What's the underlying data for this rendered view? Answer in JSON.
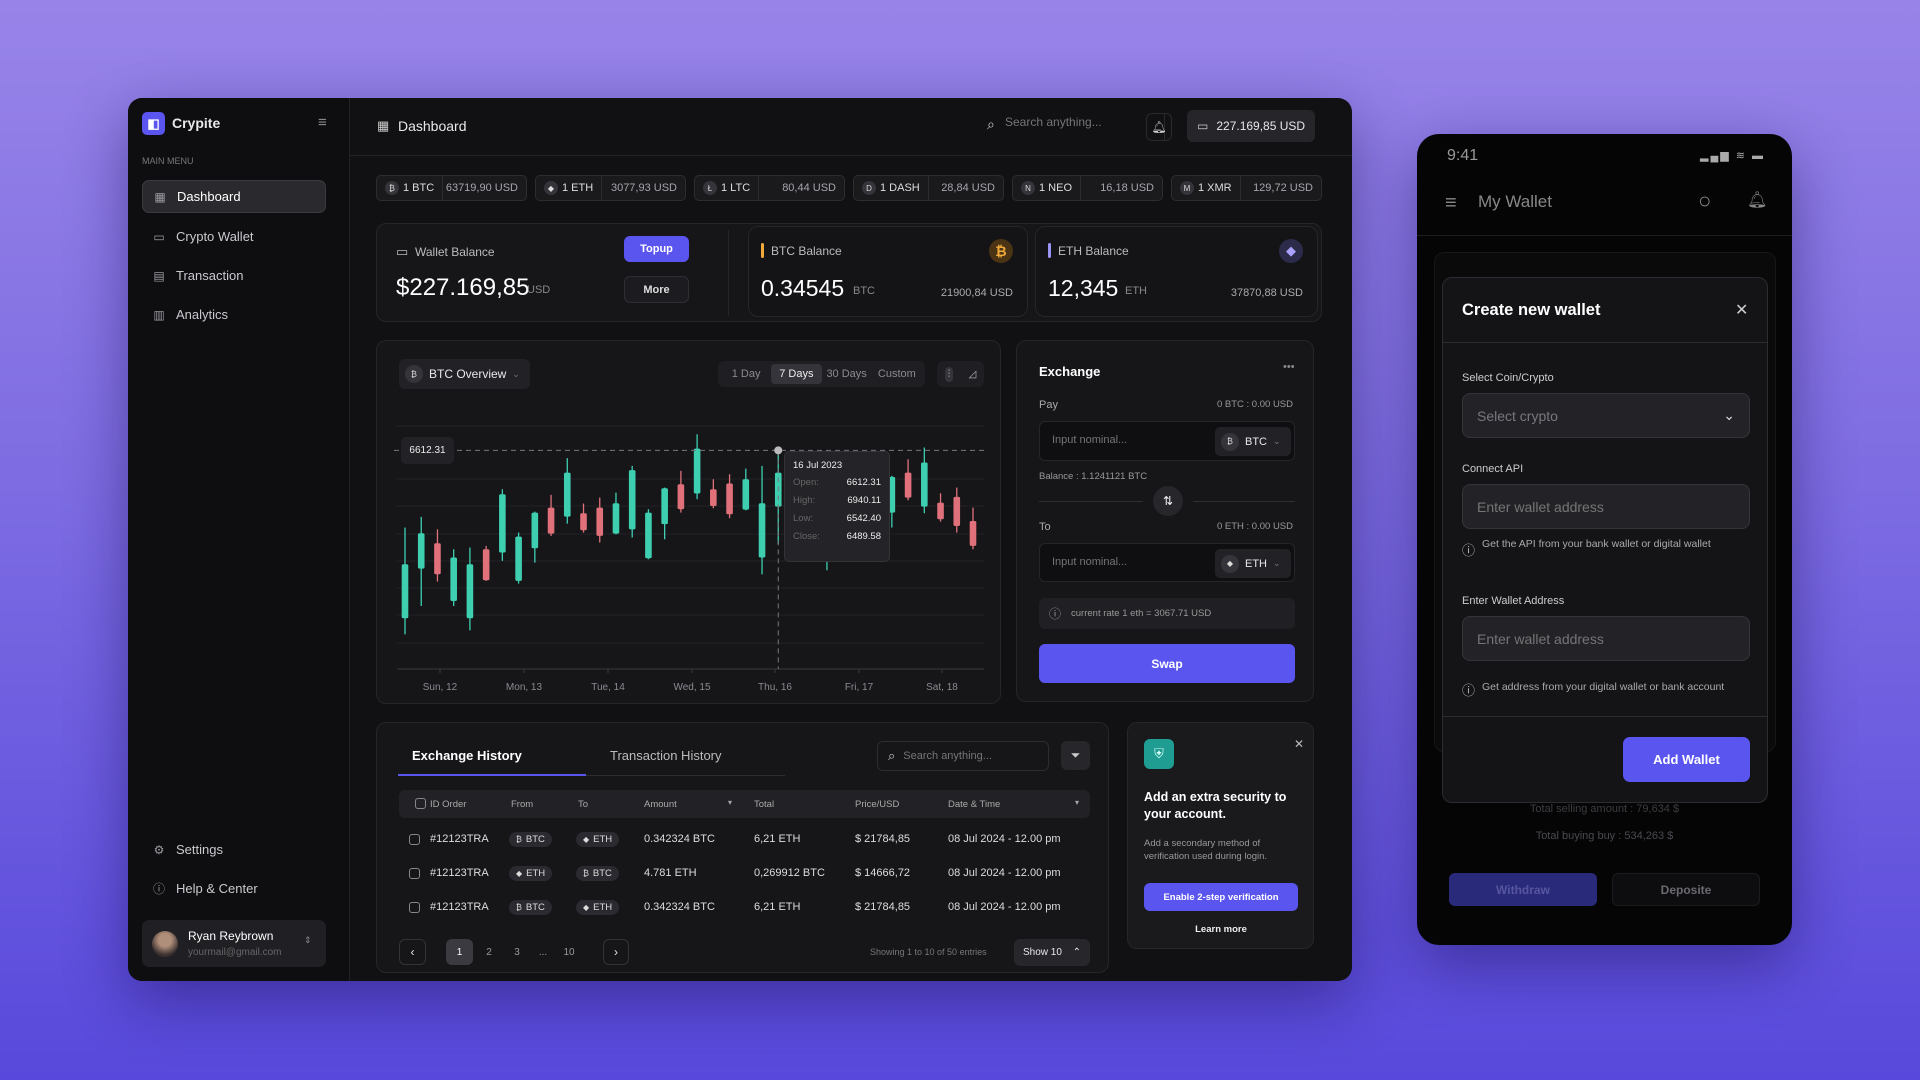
{
  "app": {
    "name": "Crypite",
    "main_menu_label": "MAIN MENU"
  },
  "sidebar": {
    "items": [
      {
        "label": "Dashboard",
        "icon": "grid-icon",
        "active": true
      },
      {
        "label": "Crypto Wallet",
        "icon": "wallet-icon"
      },
      {
        "label": "Transaction",
        "icon": "receipt-icon"
      },
      {
        "label": "Analytics",
        "icon": "chart-icon"
      }
    ],
    "bottom": [
      {
        "label": "Settings",
        "icon": "gear-icon"
      },
      {
        "label": "Help & Center",
        "icon": "help-icon"
      }
    ],
    "user": {
      "name": "Ryan Reybrown",
      "email": "yourmail@gmail.com"
    }
  },
  "header": {
    "title": "Dashboard",
    "search_placeholder": "Search anything...",
    "balance": "227.169,85 USD"
  },
  "tickers": [
    {
      "symbol": "1 BTC",
      "glyph": "₿",
      "price": "63719,90 USD"
    },
    {
      "symbol": "1 ETH",
      "glyph": "◆",
      "price": "3077,93 USD"
    },
    {
      "symbol": "1 LTC",
      "glyph": "Ł",
      "price": "80,44 USD"
    },
    {
      "symbol": "1 DASH",
      "glyph": "D",
      "price": "28,84 USD"
    },
    {
      "symbol": "1 NEO",
      "glyph": "N",
      "price": "16,18 USD"
    },
    {
      "symbol": "1 XMR",
      "glyph": "M",
      "price": "129,72 USD"
    }
  ],
  "wallet": {
    "label": "Wallet Balance",
    "amount": "$227.169,85",
    "unit": "USD",
    "topup": "Topup",
    "more": "More"
  },
  "btc_balance": {
    "label": "BTC Balance",
    "amount": "0.34545",
    "unit": "BTC",
    "usd": "21900,84 USD",
    "accent": "#f2a93b"
  },
  "eth_balance": {
    "label": "ETH Balance",
    "amount": "12,345",
    "unit": "ETH",
    "usd": "37870,88 USD",
    "accent": "#9b94f5"
  },
  "chart_panel": {
    "selector": "BTC Overview",
    "ranges": [
      "1 Day",
      "7 Days",
      "30 Days",
      "Custom"
    ],
    "active_range": "7 Days",
    "crosshair_label": "6612.31",
    "tooltip": {
      "date": "16 Jul 2023",
      "rows": [
        {
          "k": "Open:",
          "v": "6612.31"
        },
        {
          "k": "High:",
          "v": "6940.11"
        },
        {
          "k": "Low:",
          "v": "6542.40"
        },
        {
          "k": "Close:",
          "v": "6489.58"
        }
      ]
    }
  },
  "chart_data": {
    "type": "candlestick",
    "x_tick_labels": [
      "Sun, 12",
      "Mon, 13",
      "Tue, 14",
      "Wed, 15",
      "Thu, 16",
      "Fri, 17",
      "Sat, 18"
    ],
    "ylim": [
      5100,
      6900
    ],
    "grid": true,
    "colors": {
      "up": "#3ecfb1",
      "down": "#e0717b"
    },
    "ohlc": [
      [
        5372,
        6044,
        5253,
        5772
      ],
      [
        5740,
        6123,
        5463,
        6002
      ],
      [
        5928,
        6031,
        5644,
        5698
      ],
      [
        5500,
        5883,
        5463,
        5822
      ],
      [
        5372,
        5896,
        5283,
        5772
      ],
      [
        5883,
        5908,
        5649,
        5654
      ],
      [
        5859,
        6328,
        5797,
        6291
      ],
      [
        5649,
        6007,
        5629,
        5977
      ],
      [
        5891,
        6162,
        5784,
        6155
      ],
      [
        6192,
        6286,
        5982,
        5999
      ],
      [
        6125,
        6558,
        6073,
        6451
      ],
      [
        6150,
        6222,
        6007,
        6024
      ],
      [
        6192,
        6266,
        5933,
        5982
      ],
      [
        5999,
        6303,
        5994,
        6224
      ],
      [
        6031,
        6501,
        5970,
        6469
      ],
      [
        5817,
        6180,
        5809,
        6155
      ],
      [
        6069,
        6340,
        5957,
        6335
      ],
      [
        6365,
        6464,
        6155,
        6180
      ],
      [
        6296,
        6735,
        6254,
        6629
      ],
      [
        6328,
        6402,
        6187,
        6204
      ],
      [
        6370,
        6439,
        6113,
        6143
      ],
      [
        6177,
        6481,
        6172,
        6402
      ],
      [
        5822,
        6501,
        5698,
        6224
      ],
      [
        6199,
        6587,
        5920,
        6451
      ],
      [
        6420,
        6480,
        6250,
        6300
      ],
      [
        6150,
        6420,
        6100,
        6380
      ],
      [
        5846,
        6390,
        5728,
        6240
      ],
      [
        6200,
        6350,
        6150,
        6300
      ],
      [
        6350,
        6400,
        6200,
        6250
      ],
      [
        6380,
        6420,
        6230,
        6280
      ],
      [
        6155,
        6427,
        6044,
        6419
      ],
      [
        6451,
        6550,
        6246,
        6266
      ],
      [
        6199,
        6637,
        6150,
        6526
      ],
      [
        6229,
        6298,
        6088,
        6106
      ],
      [
        6271,
        6340,
        6007,
        6056
      ],
      [
        6093,
        6192,
        5883,
        5908
      ]
    ],
    "crosshair_value": 6612.31
  },
  "exchange": {
    "title": "Exchange",
    "pay_label": "Pay",
    "pay_value": "0 BTC : 0.00 USD",
    "placeholder": "Input nominal...",
    "pay_coin": "BTC",
    "balance": "Balance : 1.1241121 BTC",
    "to_label": "To",
    "to_value": "0 ETH : 0.00 USD",
    "to_coin": "ETH",
    "rate": "current rate 1 eth = 3067.71 USD",
    "swap": "Swap"
  },
  "history": {
    "tabs": [
      "Exchange History",
      "Transaction History"
    ],
    "search_placeholder": "Search anything...",
    "columns": [
      "ID Order",
      "From",
      "To",
      "Amount",
      "Total",
      "Price/USD",
      "Date & Time"
    ],
    "rows": [
      {
        "id": "#12123TRA",
        "from": "BTC",
        "to": "ETH",
        "amount": "0.342324 BTC",
        "total": "6,21 ETH",
        "price": "$ 21784,85",
        "date": "08 Jul 2024 - 12.00 pm"
      },
      {
        "id": "#12123TRA",
        "from": "ETH",
        "to": "BTC",
        "amount": "4.781 ETH",
        "total": "0,269912 BTC",
        "price": "$ 14666,72",
        "date": "08 Jul 2024 - 12.00 pm"
      },
      {
        "id": "#12123TRA",
        "from": "BTC",
        "to": "ETH",
        "amount": "0.342324 BTC",
        "total": "6,21 ETH",
        "price": "$ 21784,85",
        "date": "08 Jul 2024 - 12.00 pm"
      }
    ],
    "pages": [
      "1",
      "2",
      "3",
      "...",
      "10"
    ],
    "showing": "Showing 1 to 10 of 50 entries",
    "show": "Show 10"
  },
  "security": {
    "title": "Add an extra security to your account.",
    "desc": "Add a secondary method of verification used during login.",
    "cta": "Enable 2-step verification",
    "learn": "Learn more"
  },
  "mobile": {
    "time": "9:41",
    "title": "My Wallet",
    "modal": {
      "title": "Create new wallet",
      "coin_label": "Select Coin/Crypto",
      "coin_placeholder": "Select crypto",
      "api_label": "Connect API",
      "api_placeholder": "Enter wallet address",
      "api_hint": "Get the API from your bank wallet or digital wallet",
      "addr_label": "Enter Wallet Address",
      "addr_placeholder": "Enter wallet address",
      "addr_hint": "Get address from your digital wallet or bank account",
      "submit": "Add Wallet"
    },
    "total_selling": "Total selling amount : 79,634 $",
    "total_buying": "Total buying buy : 534,263 $",
    "withdraw": "Withdraw",
    "deposit": "Deposite"
  },
  "accent": "#5b55f0"
}
